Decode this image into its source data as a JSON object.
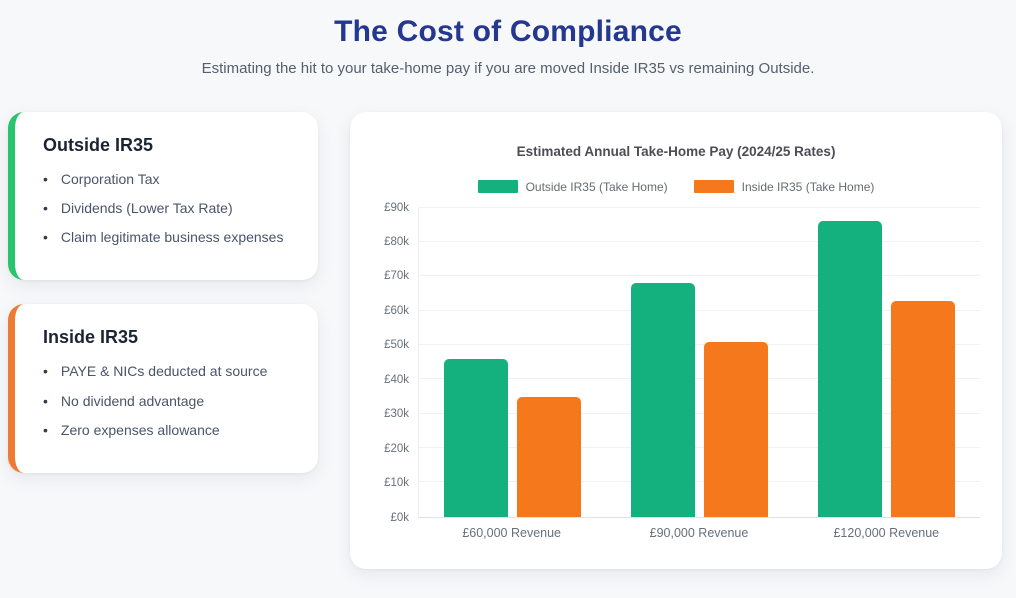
{
  "header": {
    "title": "The Cost of Compliance",
    "subtitle": "Estimating the hit to your take-home pay if you are moved Inside IR35 vs remaining Outside."
  },
  "cards": {
    "outside": {
      "title": "Outside IR35",
      "accent": "#2bc46e",
      "items": [
        "Corporation Tax",
        "Dividends (Lower Tax Rate)",
        "Claim legitimate business expenses"
      ]
    },
    "inside": {
      "title": "Inside IR35",
      "accent": "#ee7b33",
      "items": [
        "PAYE & NICs deducted at source",
        "No dividend advantage",
        "Zero expenses allowance"
      ]
    }
  },
  "chart_data": {
    "type": "bar",
    "title": "Estimated Annual Take-Home Pay (2024/25 Rates)",
    "categories": [
      "£60,000 Revenue",
      "£90,000 Revenue",
      "£120,000 Revenue"
    ],
    "series": [
      {
        "name": "Outside IR35 (Take Home)",
        "color": "#14b17e",
        "values": [
          45.8,
          68.0,
          86.2
        ]
      },
      {
        "name": "Inside IR35 (Take Home)",
        "color": "#f5781d",
        "values": [
          34.7,
          50.7,
          62.9
        ]
      }
    ],
    "value_unit": "£k",
    "ylim": [
      0,
      90
    ],
    "y_ticks": [
      "£0k",
      "£10k",
      "£20k",
      "£30k",
      "£40k",
      "£50k",
      "£60k",
      "£70k",
      "£80k",
      "£90k"
    ],
    "xlabel": "",
    "ylabel": "",
    "grid": true,
    "legend_position": "top"
  },
  "colors": {
    "page_background": "#f7f8fa",
    "card_background": "#ffffff",
    "title_navy": "#24388f",
    "subtitle_gray": "#54606e",
    "axis_text": "#66707a"
  }
}
